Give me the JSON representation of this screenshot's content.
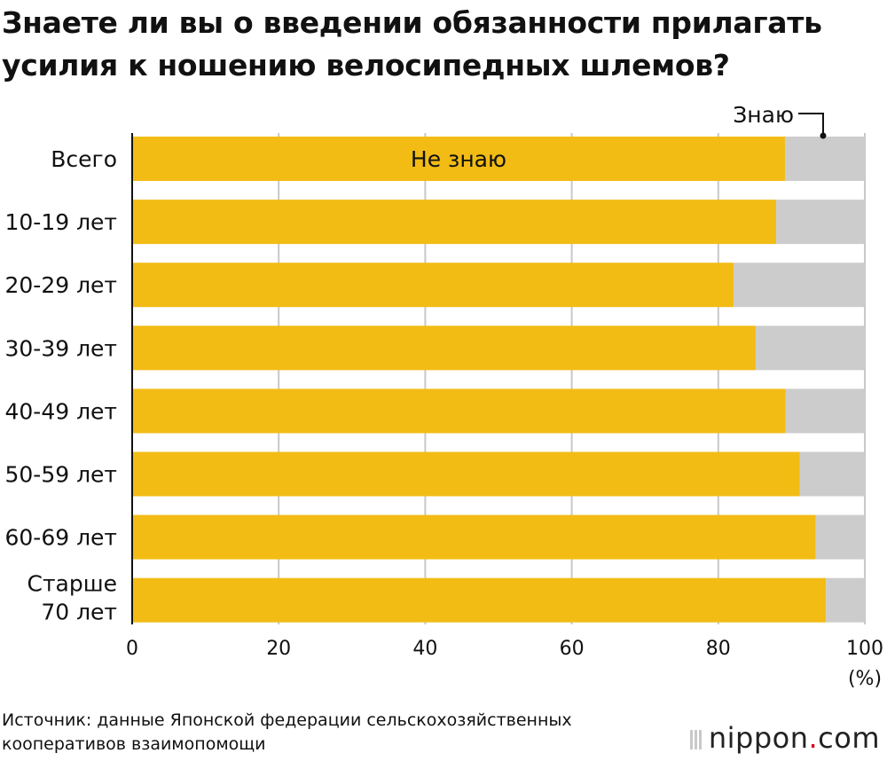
{
  "title_lines": [
    "Знаете ли вы о введении обязанности прилагать",
    "усилия к ношению велосипедных шлемов?"
  ],
  "source_lines": [
    "Источник: данные Японской федерации сельскохозяйственных",
    "кооперативов взаимопомощи"
  ],
  "logo": {
    "main": "nippon",
    "dot": ".",
    "suffix": "com"
  },
  "colors": {
    "dont_know": "#F2BC15",
    "know": "#CCCCCC",
    "grid": "#C8C8C8"
  },
  "chart_data": {
    "type": "bar",
    "orientation": "horizontal",
    "stacked": true,
    "categories": [
      [
        "Всего"
      ],
      [
        "10-19 лет"
      ],
      [
        "20-29 лет"
      ],
      [
        "30-39 лет"
      ],
      [
        "40-49 лет"
      ],
      [
        "50-59 лет"
      ],
      [
        "60-69 лет"
      ],
      [
        "Старше",
        "70 лет"
      ]
    ],
    "series": [
      {
        "name": "Не знаю",
        "color": "#F2BC15",
        "values": [
          89.1,
          87.9,
          82.1,
          85.1,
          89.2,
          91.1,
          93.3,
          94.7
        ]
      },
      {
        "name": "Знаю",
        "color": "#CCCCCC",
        "values": [
          10.9,
          12.1,
          17.9,
          14.9,
          10.8,
          8.9,
          6.7,
          5.3
        ]
      }
    ],
    "xlim": [
      0,
      100
    ],
    "xticks": [
      "0",
      "20",
      "40",
      "60",
      "80",
      "100"
    ],
    "xunit": "(%)",
    "grid": true,
    "legend": "inline labels on first bar"
  }
}
